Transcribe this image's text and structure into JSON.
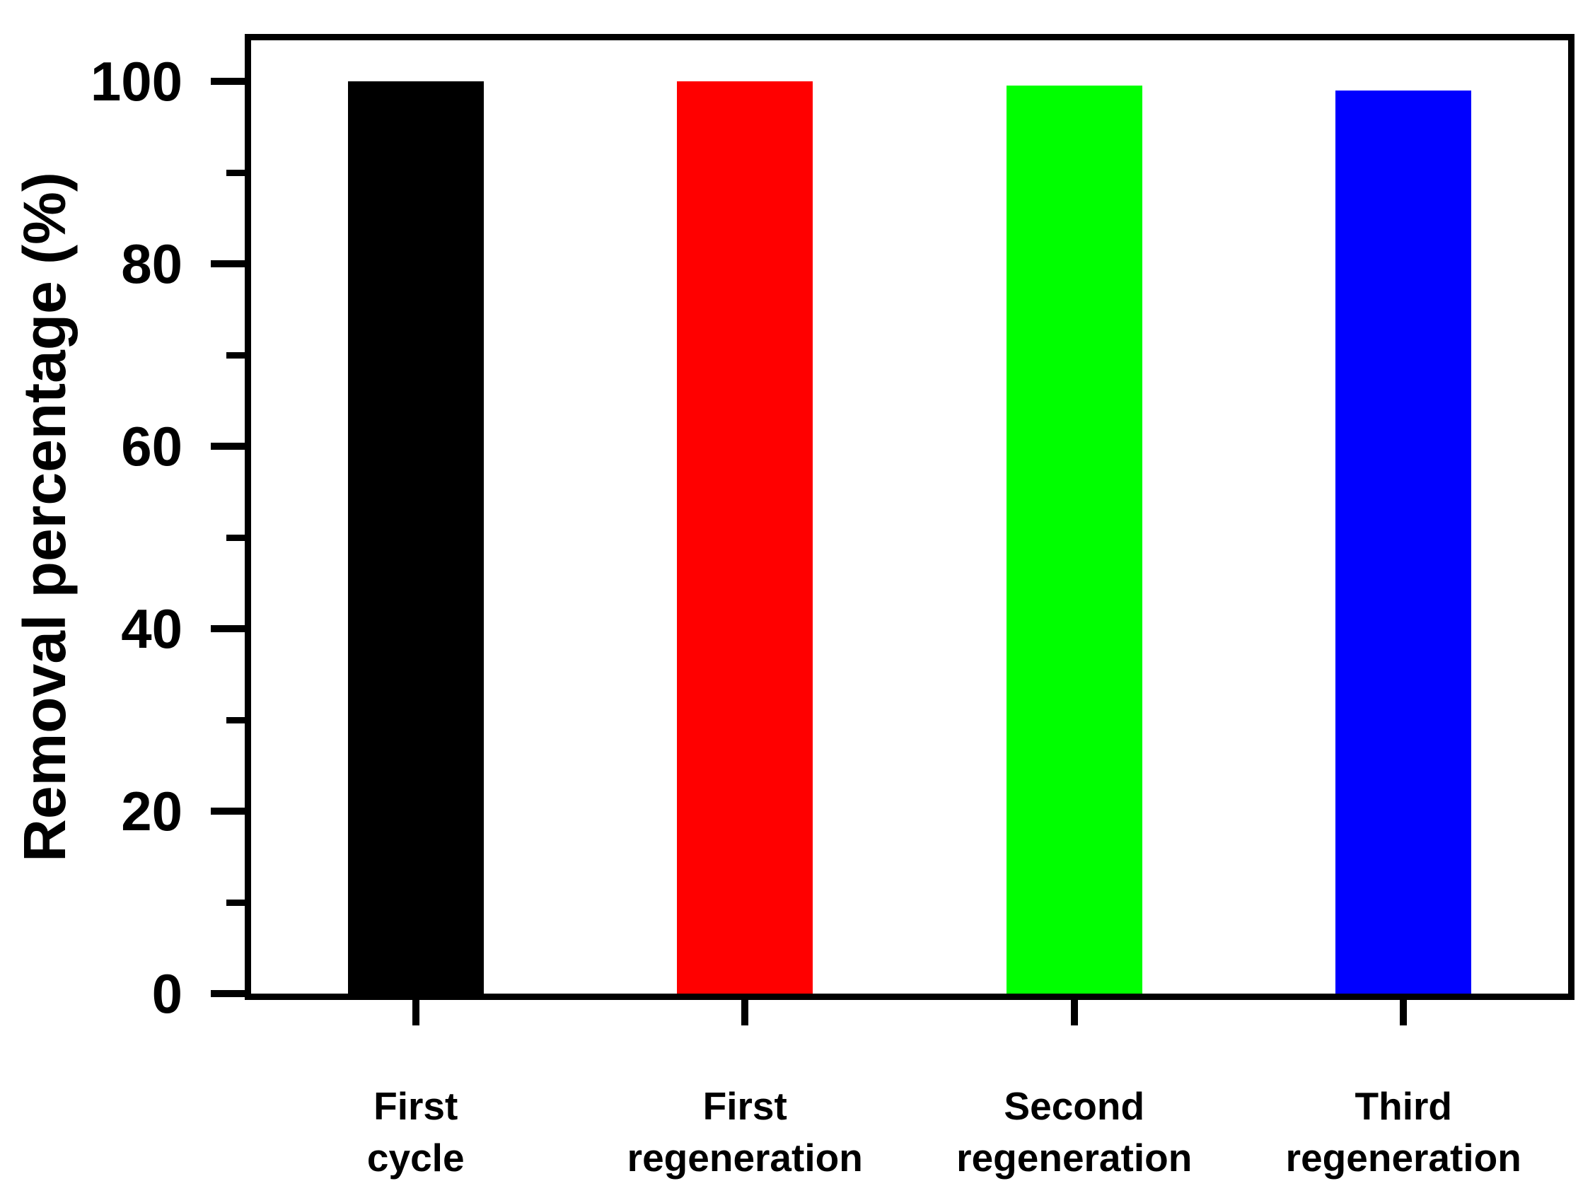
{
  "chart_data": {
    "type": "bar",
    "title": "",
    "xlabel": "",
    "ylabel": "Removal percentage (%)",
    "categories": [
      [
        "First",
        "cycle"
      ],
      [
        "First",
        "regeneration"
      ],
      [
        "Second",
        "regeneration"
      ],
      [
        "Third",
        "regeneration"
      ]
    ],
    "values": [
      100,
      100,
      99.5,
      99
    ],
    "bar_colors": [
      "#000000",
      "#FF0000",
      "#00FF00",
      "#0000FF"
    ],
    "y_ticks": [
      0,
      20,
      40,
      60,
      80,
      100
    ],
    "y_tick_labels": [
      "0",
      "20",
      "40",
      "60",
      "80",
      "100"
    ],
    "y_minor_ticks": [
      10,
      30,
      50,
      70,
      90
    ],
    "ylim": [
      0,
      104.5
    ],
    "grid": false,
    "legend_position": "none",
    "background_color": "#FFFFFF",
    "axis_color": "#000000"
  }
}
